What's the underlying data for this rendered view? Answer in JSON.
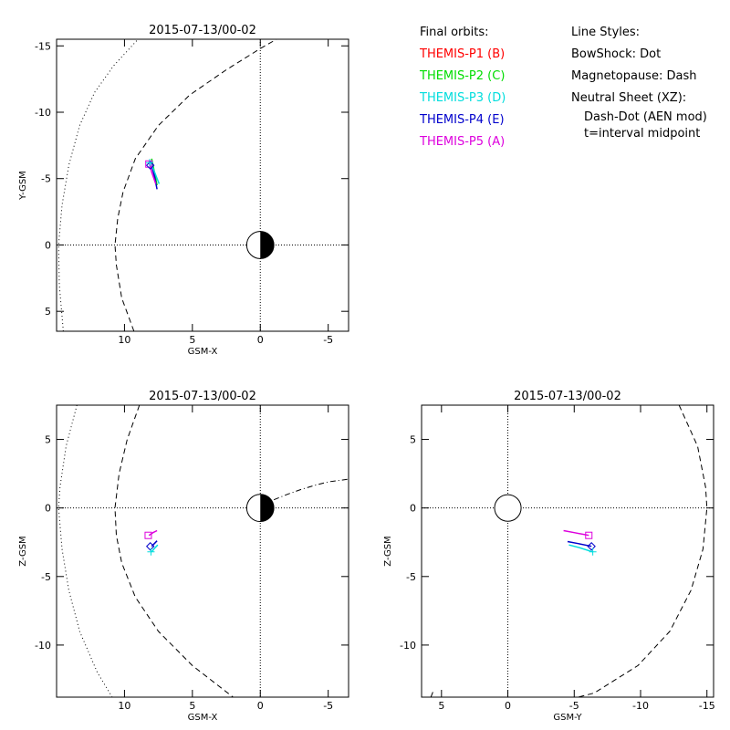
{
  "legend": {
    "orbits_title": "Final orbits:",
    "probes": [
      {
        "label": "THEMIS-P1 (B)",
        "color": "#ff0000"
      },
      {
        "label": "THEMIS-P2 (C)",
        "color": "#00dd00"
      },
      {
        "label": "THEMIS-P3 (D)",
        "color": "#00dddd"
      },
      {
        "label": "THEMIS-P4 (E)",
        "color": "#0000cc"
      },
      {
        "label": "THEMIS-P5 (A)",
        "color": "#dd00dd"
      }
    ],
    "styles_title": "Line Styles:",
    "style_lines": [
      "BowShock: Dot",
      "Magnetopause: Dash",
      "Neutral Sheet (XZ):"
    ],
    "style_sub_lines": [
      "Dash-Dot (AEN mod)",
      "t=interval midpoint"
    ]
  },
  "chart_data": [
    {
      "type": "scatter",
      "title": "2015-07-13/00-02",
      "xlabel": "GSM-X",
      "ylabel": "Y-GSM",
      "xlim": [
        15,
        -6.5
      ],
      "ylim": [
        -15.5,
        6.5
      ],
      "x_ticks": [
        10,
        5,
        0,
        -5
      ],
      "y_ticks": [
        -15,
        -10,
        -5,
        0,
        5
      ],
      "y_tick_labels": [
        "-15",
        "-10",
        "-5",
        "0",
        "5"
      ],
      "grid": "dotted zero lines",
      "earth": {
        "center": [
          0,
          0
        ],
        "radius": 1,
        "night_side": "right"
      },
      "series": [
        {
          "role": "bow-shock",
          "style": "dot",
          "points": [
            [
              14.5,
              6.5
            ],
            [
              14.8,
              3
            ],
            [
              14.85,
              0
            ],
            [
              14.6,
              -3
            ],
            [
              14.1,
              -6
            ],
            [
              13.3,
              -9
            ],
            [
              12.2,
              -11.5
            ],
            [
              10.8,
              -13.5
            ],
            [
              9,
              -15.5
            ]
          ]
        },
        {
          "role": "magnetopause",
          "style": "dash",
          "points": [
            [
              9.3,
              6.5
            ],
            [
              10.2,
              4
            ],
            [
              10.6,
              1.5
            ],
            [
              10.7,
              0
            ],
            [
              10.5,
              -2
            ],
            [
              10.1,
              -4
            ],
            [
              9.2,
              -6.5
            ],
            [
              7.5,
              -9
            ],
            [
              5.2,
              -11.3
            ],
            [
              2.5,
              -13.2
            ],
            [
              0,
              -14.8
            ],
            [
              -1.2,
              -15.5
            ]
          ]
        },
        {
          "probe": 2,
          "points": [
            [
              8,
              -6.5
            ],
            [
              7.8,
              -5.5
            ],
            [
              7.6,
              -4.5
            ]
          ]
        },
        {
          "probe": 4,
          "points": [
            [
              8,
              -6.0
            ],
            [
              7.8,
              -5.2
            ],
            [
              7.6,
              -4.2
            ]
          ]
        },
        {
          "probe": 3,
          "points": [
            [
              8.1,
              -6.3
            ],
            [
              7.75,
              -5.4
            ],
            [
              7.45,
              -4.6
            ]
          ]
        },
        {
          "probe": 5,
          "points": [
            [
              8.2,
              -6.3
            ],
            [
              8.0,
              -5.5
            ],
            [
              7.7,
              -4.6
            ]
          ]
        }
      ],
      "markers": [
        {
          "probe": 5,
          "shape": "square",
          "point": [
            8.2,
            -6.1
          ]
        },
        {
          "probe": 4,
          "shape": "diamond",
          "point": [
            8.1,
            -6.0
          ]
        },
        {
          "probe": 3,
          "shape": "plus",
          "point": [
            8.15,
            -6.2
          ]
        }
      ]
    },
    {
      "type": "scatter",
      "title": "2015-07-13/00-02",
      "xlabel": "GSM-X",
      "ylabel": "Z-GSM",
      "xlim": [
        15,
        -6.5
      ],
      "ylim": [
        7.5,
        -13.8
      ],
      "x_ticks": [
        10,
        5,
        0,
        -5
      ],
      "y_ticks": [
        5,
        0,
        -5,
        -10
      ],
      "y_tick_labels": [
        "5",
        "0",
        "-5",
        "-10"
      ],
      "grid": "dotted zero lines",
      "earth": {
        "center": [
          0,
          0
        ],
        "radius": 1,
        "night_side": "right"
      },
      "series": [
        {
          "role": "bow-shock",
          "style": "dot",
          "points": [
            [
              13.5,
              7.5
            ],
            [
              14.3,
              4.5
            ],
            [
              14.75,
              1.5
            ],
            [
              14.85,
              0
            ],
            [
              14.6,
              -3
            ],
            [
              14.1,
              -6
            ],
            [
              13.3,
              -9
            ],
            [
              12,
              -12
            ],
            [
              10.9,
              -13.8
            ]
          ]
        },
        {
          "role": "magnetopause",
          "style": "dash",
          "points": [
            [
              8.9,
              7.5
            ],
            [
              9.8,
              5
            ],
            [
              10.4,
              2.5
            ],
            [
              10.7,
              0
            ],
            [
              10.6,
              -2
            ],
            [
              10.2,
              -4
            ],
            [
              9.2,
              -6.5
            ],
            [
              7.5,
              -9
            ],
            [
              5,
              -11.5
            ],
            [
              2,
              -13.8
            ]
          ]
        },
        {
          "role": "neutral-sheet",
          "style": "dash-dot",
          "points": [
            [
              -1,
              0.6
            ],
            [
              -2,
              1.0
            ],
            [
              -3,
              1.35
            ],
            [
              -4,
              1.65
            ],
            [
              -5,
              1.9
            ],
            [
              -6.5,
              2.1
            ]
          ]
        },
        {
          "probe": 5,
          "points": [
            [
              8.2,
              -2.0
            ],
            [
              7.9,
              -1.8
            ],
            [
              7.6,
              -1.65
            ]
          ]
        },
        {
          "probe": 4,
          "points": [
            [
              8.0,
              -2.8
            ],
            [
              7.8,
              -2.6
            ],
            [
              7.6,
              -2.4
            ]
          ]
        },
        {
          "probe": 3,
          "points": [
            [
              8.0,
              -3.2
            ],
            [
              7.8,
              -2.95
            ],
            [
              7.55,
              -2.7
            ]
          ]
        }
      ],
      "markers": [
        {
          "probe": 5,
          "shape": "square",
          "point": [
            8.25,
            -2.0
          ]
        },
        {
          "probe": 4,
          "shape": "diamond",
          "point": [
            8.1,
            -2.8
          ]
        },
        {
          "probe": 3,
          "shape": "plus",
          "point": [
            8.05,
            -3.2
          ]
        }
      ]
    },
    {
      "type": "scatter",
      "title": "2015-07-13/00-02",
      "xlabel": "GSM-Y",
      "ylabel": "Z-GSM",
      "xlim": [
        6.5,
        -15.5
      ],
      "ylim": [
        7.5,
        -13.8
      ],
      "x_ticks": [
        5,
        0,
        -5,
        -10,
        -15
      ],
      "y_ticks": [
        5,
        0,
        -5,
        -10
      ],
      "y_tick_labels": [
        "5",
        "0",
        "-5",
        "-10"
      ],
      "grid": "dotted zero lines",
      "earth": {
        "center": [
          0,
          0
        ],
        "radius": 1,
        "night_side": "none"
      },
      "series": [
        {
          "role": "magnetopause",
          "style": "dash",
          "points": [
            [
              -12.9,
              7.5
            ],
            [
              -14.3,
              4.5
            ],
            [
              -14.9,
              1.5
            ],
            [
              -15.0,
              0
            ],
            [
              -14.7,
              -3
            ],
            [
              -13.8,
              -6
            ],
            [
              -12.2,
              -9
            ],
            [
              -9.8,
              -11.5
            ],
            [
              -6.5,
              -13.5
            ],
            [
              -5.3,
              -13.8
            ]
          ]
        },
        {
          "role": "magnetopause",
          "style": "dash",
          "points": [
            [
              5.8,
              -13.8
            ],
            [
              5.6,
              -13.3
            ]
          ]
        },
        {
          "probe": 5,
          "points": [
            [
              -6.1,
              -2.0
            ],
            [
              -5,
              -1.8
            ],
            [
              -4.2,
              -1.65
            ]
          ]
        },
        {
          "probe": 4,
          "points": [
            [
              -6.3,
              -2.8
            ],
            [
              -5.3,
              -2.6
            ],
            [
              -4.5,
              -2.45
            ]
          ]
        },
        {
          "probe": 3,
          "points": [
            [
              -6.4,
              -3.2
            ],
            [
              -5.4,
              -2.9
            ],
            [
              -4.6,
              -2.7
            ]
          ]
        }
      ],
      "markers": [
        {
          "probe": 5,
          "shape": "square",
          "point": [
            -6.1,
            -2.0
          ]
        },
        {
          "probe": 4,
          "shape": "diamond",
          "point": [
            -6.3,
            -2.8
          ]
        },
        {
          "probe": 3,
          "shape": "plus",
          "point": [
            -6.4,
            -3.2
          ]
        }
      ]
    }
  ]
}
